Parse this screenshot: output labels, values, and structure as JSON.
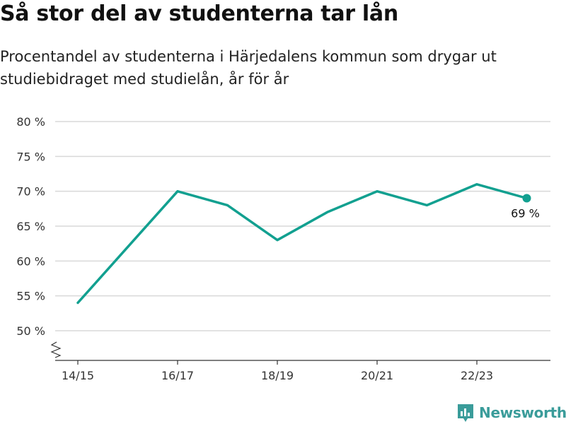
{
  "title": "Så stor del av studenterna tar lån",
  "subtitle": "Procentandel av studenterna i Härjedalens kommun som drygar ut studiebidraget med studielån, år för år",
  "brand": {
    "name": "Newsworthy",
    "color": "#3a9c9a"
  },
  "chart_data": {
    "type": "line",
    "x": [
      "14/15",
      "15/16",
      "16/17",
      "17/18",
      "18/19",
      "19/20",
      "20/21",
      "21/22",
      "22/23",
      "23/24"
    ],
    "x_tick_labels": [
      "14/15",
      "16/17",
      "18/19",
      "20/21",
      "22/23"
    ],
    "series": [
      {
        "values": [
          54,
          62,
          70,
          68,
          63,
          67,
          70,
          68,
          71,
          69
        ],
        "color": "#12a090"
      }
    ],
    "ylim": [
      50,
      80
    ],
    "y_ticks": [
      50,
      55,
      60,
      65,
      70,
      75,
      80
    ],
    "y_tick_format": "{v} %",
    "y_axis_break": true,
    "grid": true,
    "last_point_label": "69 %"
  }
}
